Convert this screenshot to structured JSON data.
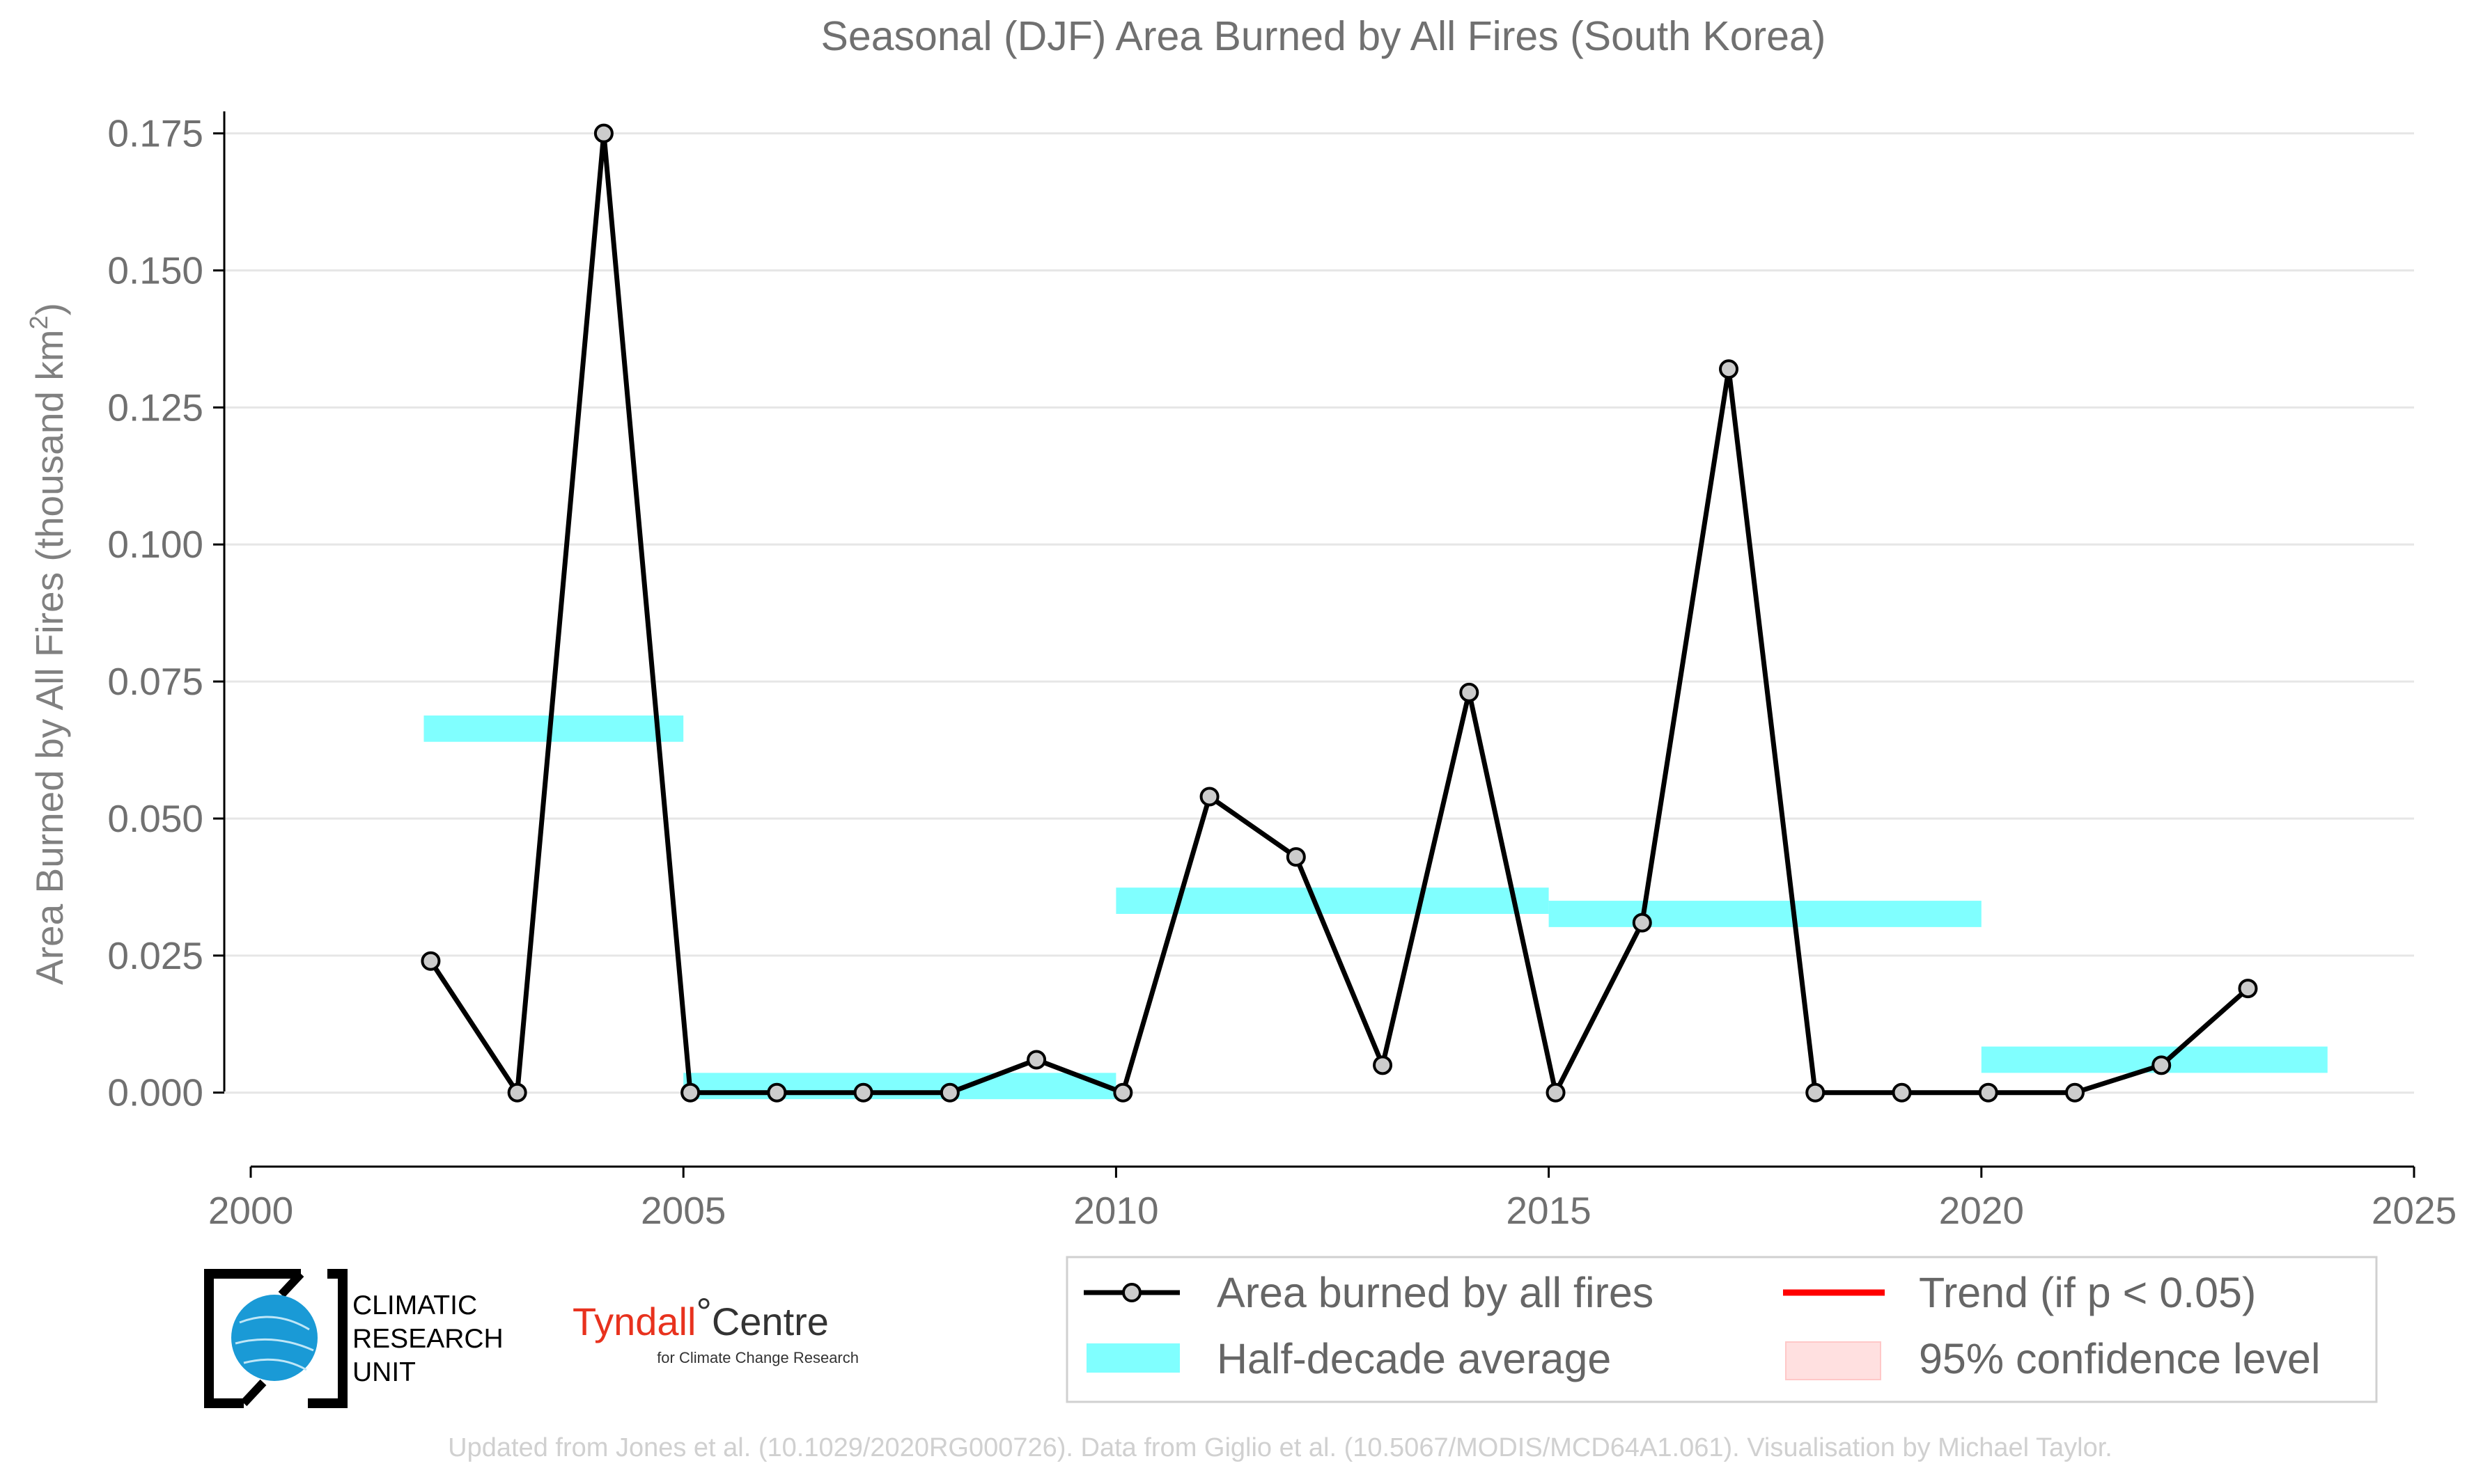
{
  "chart_data": {
    "type": "line",
    "title": "Seasonal (DJF) Area Burned by All Fires (South Korea)",
    "xlabel": "",
    "ylabel": "Area Burned by All Fires (thousand km",
    "ylabel_sup": "2",
    "ylabel_close": ")",
    "xlim": [
      2000,
      2025
    ],
    "ylim": [
      -0.0135,
      0.178
    ],
    "xticks": [
      2000,
      2005,
      2010,
      2015,
      2020,
      2025
    ],
    "xtick_labels": [
      "2000",
      "2005",
      "2010",
      "2015",
      "2020",
      "2025"
    ],
    "yticks": [
      0.0,
      0.025,
      0.05,
      0.075,
      0.1,
      0.125,
      0.15,
      0.175
    ],
    "ytick_labels": [
      "0.000",
      "0.025",
      "0.050",
      "0.075",
      "0.100",
      "0.125",
      "0.150",
      "0.175"
    ],
    "grid": true,
    "series": [
      {
        "name": "Area burned by all fires",
        "color": "#000000",
        "marker_fill": "#cccccc",
        "x": [
          2002,
          2003,
          2004,
          2005,
          2006,
          2007,
          2008,
          2009,
          2010,
          2011,
          2012,
          2013,
          2014,
          2015,
          2016,
          2017,
          2018,
          2019,
          2020,
          2021,
          2022,
          2023
        ],
        "y": [
          0.024,
          0.0,
          0.175,
          0.0,
          0.0,
          0.0,
          0.0,
          0.006,
          0.0,
          0.054,
          0.043,
          0.005,
          0.073,
          0.0,
          0.031,
          0.132,
          0.0,
          0.0,
          0.0,
          0.0,
          0.005,
          0.019
        ]
      }
    ],
    "half_decade_average": {
      "name": "Half-decade average",
      "color": "#80ffff",
      "segments": [
        {
          "x_start": 2002,
          "x_end": 2005,
          "y": 0.0664
        },
        {
          "x_start": 2005,
          "x_end": 2010,
          "y": 0.0012
        },
        {
          "x_start": 2010,
          "x_end": 2015,
          "y": 0.035
        },
        {
          "x_start": 2015,
          "x_end": 2020,
          "y": 0.0326
        },
        {
          "x_start": 2020,
          "x_end": 2024,
          "y": 0.006
        }
      ]
    },
    "legend_placement": "bottom-right",
    "legend": [
      {
        "label": "Area burned by all fires",
        "kind": "line-marker",
        "color": "#000000"
      },
      {
        "label": "Trend (if p < 0.05)",
        "kind": "line",
        "color": "#ff0000"
      },
      {
        "label": "Half-decade average",
        "kind": "band",
        "color": "#80ffff"
      },
      {
        "label": "95% confidence level",
        "kind": "patch",
        "color": "#ffe0e0"
      }
    ]
  },
  "logos": {
    "cru": {
      "line1": "CLIMATIC",
      "line2": "RESEARCH",
      "line3": "UNIT",
      "color": "#1a9ad6"
    },
    "tyndall": {
      "red": "Tyndall",
      "degree": "°",
      "dark": "Centre",
      "sub": "for Climate Change Research"
    }
  },
  "credit": "Updated from Jones et al. (10.1029/2020RG000726). Data from Giglio et al. (10.5067/MODIS/MCD64A1.061). Visualisation by Michael Taylor."
}
